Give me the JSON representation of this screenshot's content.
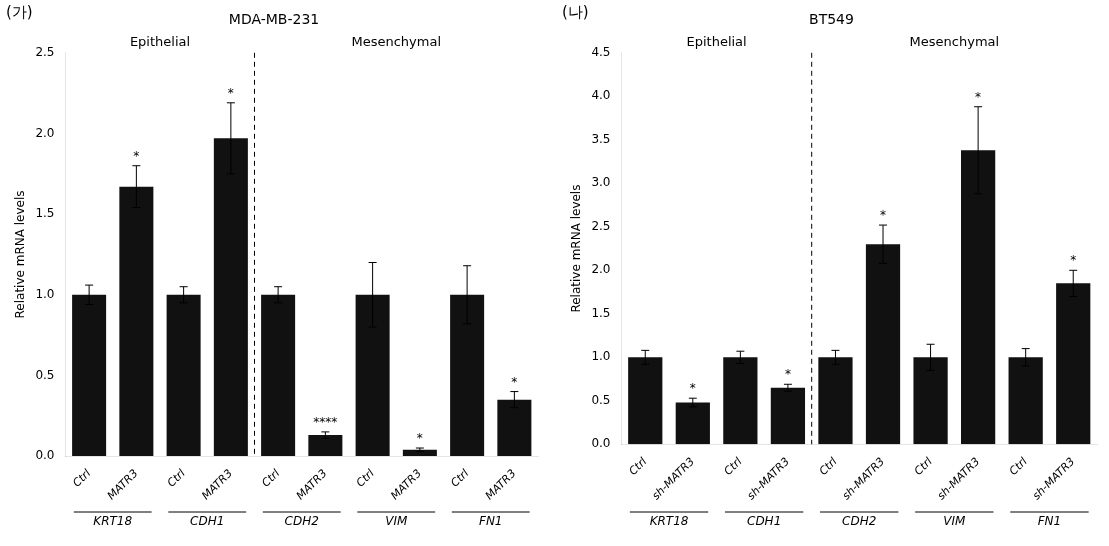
{
  "chart_data": [
    {
      "type": "bar",
      "panel_label": "(가)",
      "title": "MDA-MB-231",
      "ylabel": "Relative mRNA levels",
      "categories": [
        "Ctrl",
        "MATR3",
        "Ctrl",
        "MATR3",
        "Ctrl",
        "MATR3",
        "Ctrl",
        "MATR3",
        "Ctrl",
        "MATR3"
      ],
      "group": [
        "KRT18",
        "KRT18",
        "CDH1",
        "CDH1",
        "CDH2",
        "CDH2",
        "VIM",
        "VIM",
        "FN1",
        "FN1"
      ],
      "values": [
        1.0,
        1.67,
        1.0,
        1.97,
        1.0,
        0.13,
        1.0,
        0.04,
        1.0,
        0.35
      ],
      "err": [
        0.06,
        0.13,
        0.05,
        0.22,
        0.05,
        0.02,
        0.2,
        0.01,
        0.18,
        0.05
      ],
      "significance": [
        null,
        "*",
        null,
        "*",
        null,
        "****",
        null,
        "*",
        null,
        "*"
      ],
      "regions": [
        {
          "label": "Epithelial",
          "groups": [
            "KRT18",
            "CDH1"
          ]
        },
        {
          "label": "Mesenchymal",
          "groups": [
            "CDH2",
            "VIM",
            "FN1"
          ]
        }
      ],
      "color": "#111111",
      "ylim": [
        0,
        2.5
      ],
      "yticks": [
        {
          "value": 0,
          "label": "0.0"
        },
        0.5,
        {
          "value": 1,
          "label": "1.0"
        },
        1.5,
        {
          "value": 2,
          "label": "2.0"
        },
        2.5
      ],
      "grid": false
    },
    {
      "type": "bar",
      "panel_label": "(나)",
      "title": "BT549",
      "ylabel": "Relative mRNA levels",
      "categories": [
        "Ctrl",
        "sh-MATR3",
        "Ctrl",
        "sh-MATR3",
        "Ctrl",
        "sh-MATR3",
        "Ctrl",
        "sh-MATR3",
        "Ctrl",
        "sh-MATR3"
      ],
      "group": [
        "KRT18",
        "KRT18",
        "CDH1",
        "CDH1",
        "CDH2",
        "CDH2",
        "VIM",
        "VIM",
        "FN1",
        "FN1"
      ],
      "values": [
        1.0,
        0.48,
        1.0,
        0.65,
        1.0,
        2.3,
        1.0,
        3.38,
        1.0,
        1.85
      ],
      "err": [
        0.08,
        0.05,
        0.07,
        0.04,
        0.08,
        0.22,
        0.15,
        0.5,
        0.1,
        0.15
      ],
      "significance": [
        null,
        "*",
        null,
        "*",
        null,
        "*",
        null,
        "*",
        null,
        "*"
      ],
      "regions": [
        {
          "label": "Epithelial",
          "groups": [
            "KRT18",
            "CDH1"
          ]
        },
        {
          "label": "Mesenchymal",
          "groups": [
            "CDH2",
            "VIM",
            "FN1"
          ]
        }
      ],
      "color": "#111111",
      "ylim": [
        0,
        4.5
      ],
      "yticks": [
        {
          "value": 0,
          "label": "0.0"
        },
        0.5,
        {
          "value": 1,
          "label": "1.0"
        },
        1.5,
        {
          "value": 2,
          "label": "2.0"
        },
        2.5,
        {
          "value": 3,
          "label": "3.0"
        },
        3.5,
        {
          "value": 4,
          "label": "4.0"
        },
        4.5
      ],
      "grid": false
    }
  ]
}
